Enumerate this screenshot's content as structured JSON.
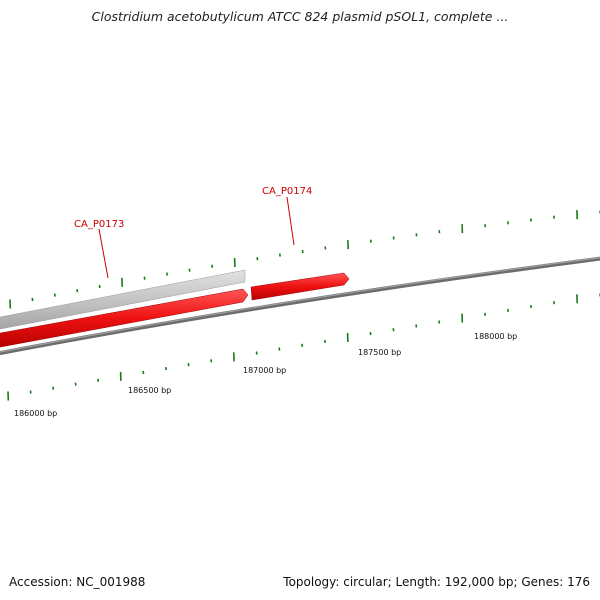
{
  "title": "Clostridium acetobutylicum ATCC 824 plasmid pSOL1, complete ...",
  "footer": {
    "accession": "Accession: NC_001988",
    "summary": "Topology: circular; Length: 192,000 bp; Genes: 176"
  },
  "genes": [
    {
      "name": "CA_P0173",
      "strand": "forward",
      "color": "#ff1111"
    },
    {
      "name": "CA_P0174",
      "strand": "forward",
      "color": "#ff1111"
    }
  ],
  "ruler_labels": [
    "186000 bp",
    "186500 bp",
    "187000 bp",
    "187500 bp",
    "188000 bp"
  ],
  "colors": {
    "backbone": "#777777",
    "gene": "#ff1111",
    "gene_label": "#cc0000",
    "other_feature": "#c4c4c4",
    "tick": "#1a7a1a"
  }
}
